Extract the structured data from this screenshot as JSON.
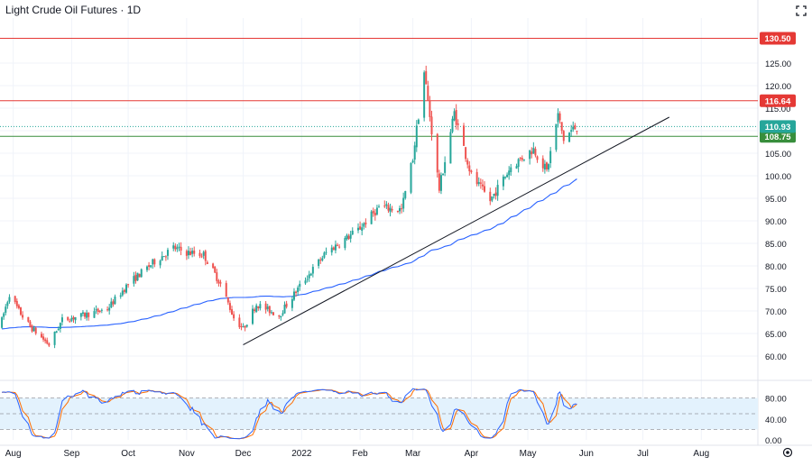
{
  "header": {
    "title": "Light Crude Oil Futures · 1D"
  },
  "chart_data": {
    "type": "candlestick",
    "price_panel": {
      "ylim": [
        55,
        133
      ],
      "y_ticks": [
        "60.00",
        "65.00",
        "70.00",
        "75.00",
        "80.00",
        "85.00",
        "90.00",
        "95.00",
        "100.00",
        "105.00",
        "110.00",
        "115.00",
        "120.00",
        "125.00"
      ],
      "horizontal_levels": [
        {
          "value": 130.5,
          "label": "130.50",
          "color": "#e53935"
        },
        {
          "value": 116.64,
          "label": "116.64",
          "color": "#e53935"
        },
        {
          "value": 108.75,
          "label": "108.75",
          "color": "#388e3c"
        }
      ],
      "last_price": {
        "value": 110.93,
        "label": "110.93",
        "color": "#26a69a"
      },
      "trendline": {
        "from": [
          "2021-12-01",
          62.5
        ],
        "to": [
          "2022-07-15",
          113.0
        ],
        "color": "#131722"
      },
      "moving_average_color": "#2962ff",
      "up_color": "#26a69a",
      "down_color": "#ef5350",
      "grid": true
    },
    "oscillator_panel": {
      "name": "",
      "ylim": [
        0,
        100
      ],
      "y_ticks": [
        "0.00",
        "40.00",
        "80.00"
      ],
      "band": [
        20,
        80
      ],
      "mid": 50,
      "k_color": "#2962ff",
      "d_color": "#ff6d00",
      "band_color": "#e3f2fd"
    },
    "x_tick_labels": [
      "Aug",
      "Sep",
      "Oct",
      "Nov",
      "Dec",
      "2022",
      "Feb",
      "Mar",
      "Apr",
      "May",
      "Jun",
      "Jul",
      "Aug"
    ],
    "x_range": [
      "2021-07-25",
      "2022-08-31"
    ]
  }
}
